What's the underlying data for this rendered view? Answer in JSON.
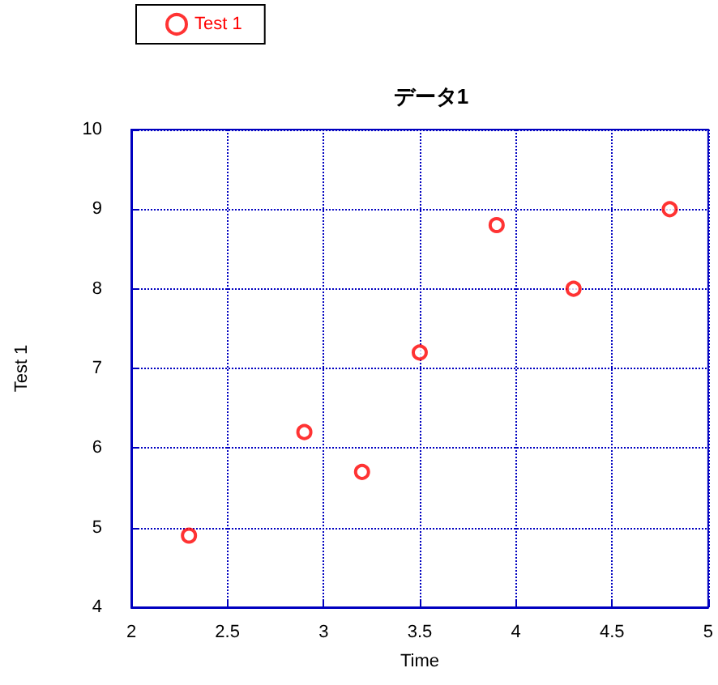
{
  "chart_data": {
    "type": "scatter",
    "title": "データ1",
    "xlabel": "Time",
    "ylabel": "Test 1",
    "x": [
      2.3,
      2.9,
      3.2,
      3.5,
      3.9,
      4.3,
      4.8
    ],
    "series": [
      {
        "name": "Test 1",
        "color": "#ff0000",
        "values": [
          4.9,
          6.2,
          5.7,
          7.2,
          8.8,
          8.0,
          9.0
        ]
      }
    ],
    "xlim": [
      2,
      5
    ],
    "xticks": [
      2,
      2.5,
      3,
      3.5,
      4,
      4.5,
      5
    ],
    "ylim": [
      4,
      10
    ],
    "yticks": [
      4,
      5,
      6,
      7,
      8,
      9,
      10
    ],
    "grid": true,
    "legend": "top left",
    "marker": "circle"
  }
}
